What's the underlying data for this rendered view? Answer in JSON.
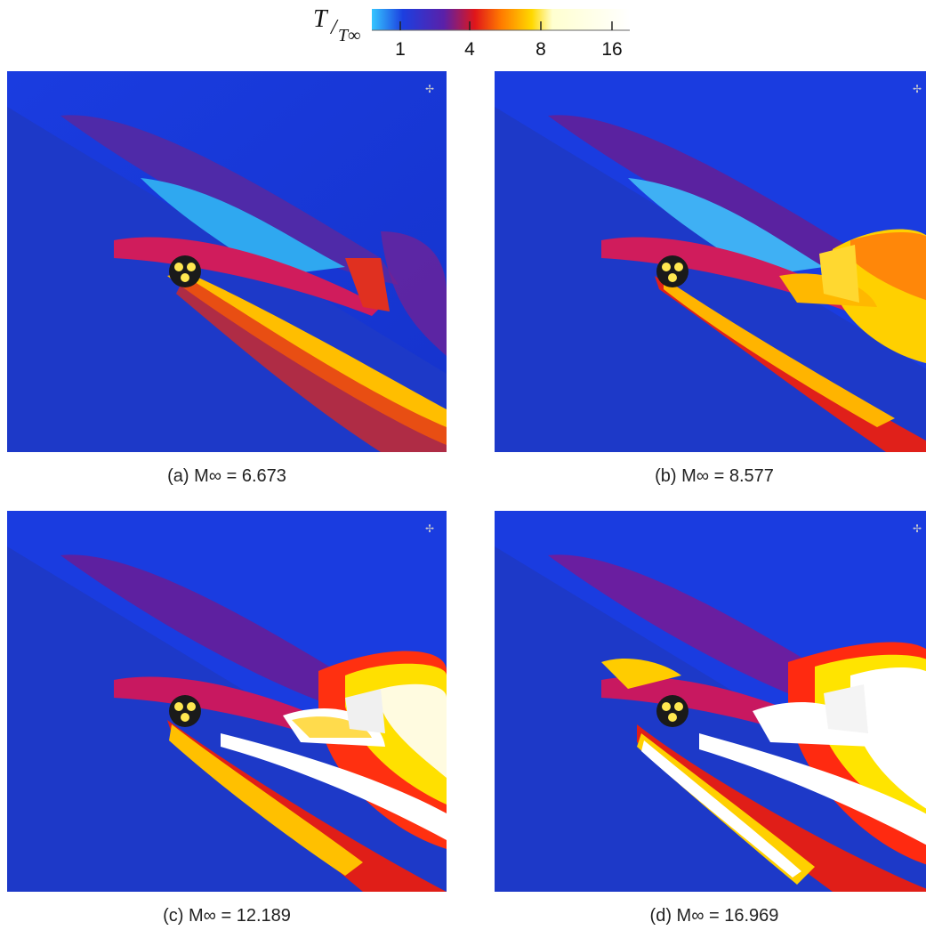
{
  "colorbar": {
    "title_num": "T",
    "title_den": "T∞",
    "ticks": [
      "1",
      "4",
      "8",
      "16"
    ],
    "colors": [
      "#2aa8f0",
      "#1833d8",
      "#5a1ea8",
      "#e01818",
      "#ff8a00",
      "#ffe000",
      "#fff7b0",
      "#ffffff"
    ]
  },
  "panels": [
    {
      "caption": "(a) M∞ = 6.673",
      "mach": 6.673
    },
    {
      "caption": "(b) M∞ = 8.577",
      "mach": 8.577
    },
    {
      "caption": "(c) M∞ = 12.189",
      "mach": 12.189
    },
    {
      "caption": "(d) M∞ = 16.969",
      "mach": 16.969
    }
  ]
}
